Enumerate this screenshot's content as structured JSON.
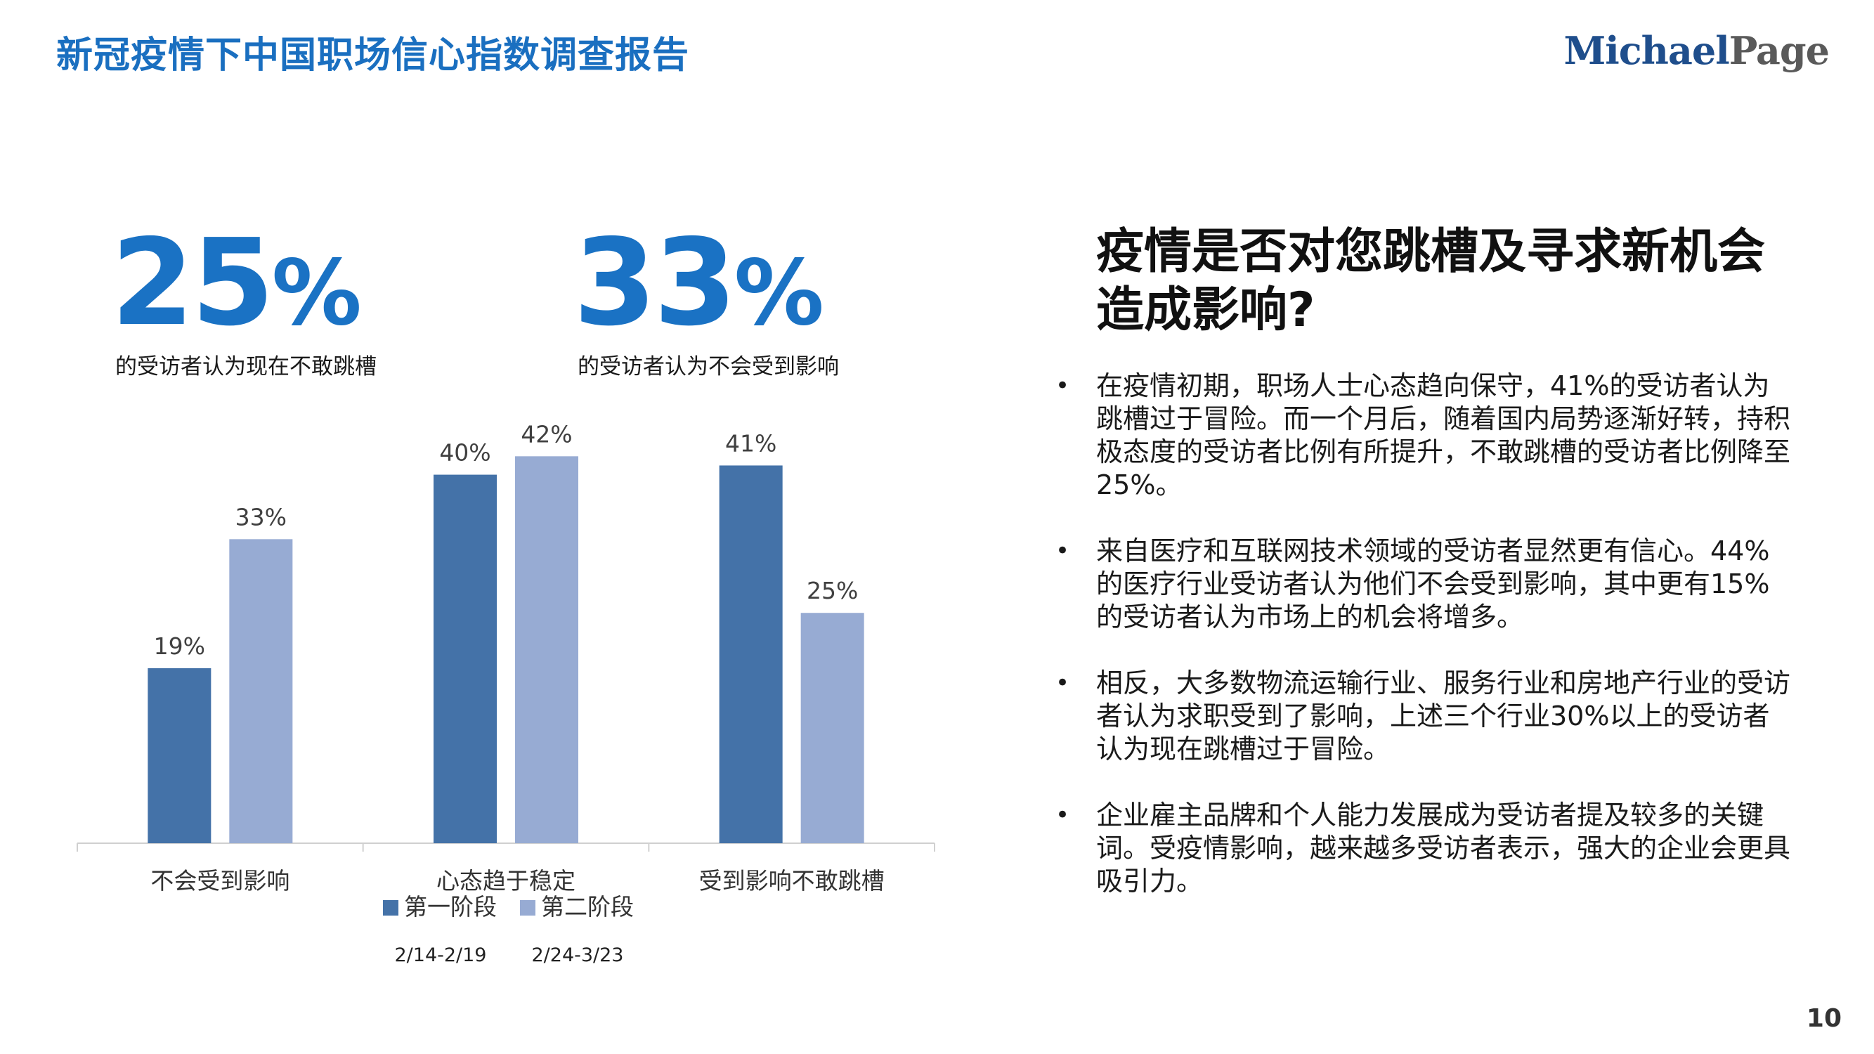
{
  "header": {
    "title": "新冠疫情下中国职场信心指数调查报告",
    "logo_part1": "Michael",
    "logo_part2": "Page"
  },
  "stats": [
    {
      "number": "25",
      "unit": "%",
      "caption": "的受访者认为现在不敢跳槽"
    },
    {
      "number": "33",
      "unit": "%",
      "caption": "的受访者认为不会受到影响"
    }
  ],
  "question": "疫情是否对您跳槽及寻求新机会造成影响?",
  "bullet_marker": "•",
  "bullets": [
    "在疫情初期，职场人士心态趋向保守，41%的受访者认为跳槽过于冒险。而一个月后，随着国内局势逐渐好转，持积极态度的受访者比例有所提升，不敢跳槽的受访者比例降至25%。",
    "来自医疗和互联网技术领域的受访者显然更有信心。44%的医疗行业受访者认为他们不会受到影响，其中更有15%的受访者认为市场上的机会将增多。",
    "相反，大多数物流运输行业、服务行业和房地产行业的受访者认为求职受到了影响，上述三个行业30%以上的受访者认为现在跳槽过于冒险。",
    "企业雇主品牌和个人能力发展成为受访者提及较多的关键词。受疫情影响，越来越多受访者表示，强大的企业会更具吸引力。"
  ],
  "page_number": "10",
  "chart_data": {
    "type": "bar",
    "categories": [
      "不会受到影响",
      "心态趋于稳定",
      "受到影响不敢跳槽"
    ],
    "series": [
      {
        "name": "第一阶段",
        "period": "2/14-2/19",
        "values": [
          19,
          40,
          41
        ],
        "color": "#4472a8"
      },
      {
        "name": "第二阶段",
        "period": "2/24-3/23",
        "values": [
          33,
          42,
          25
        ],
        "color": "#97abd3"
      }
    ],
    "unit": "%",
    "ylim": [
      0,
      45
    ],
    "grid": false,
    "legend_position": "bottom",
    "title": "",
    "xlabel": "",
    "ylabel": ""
  }
}
